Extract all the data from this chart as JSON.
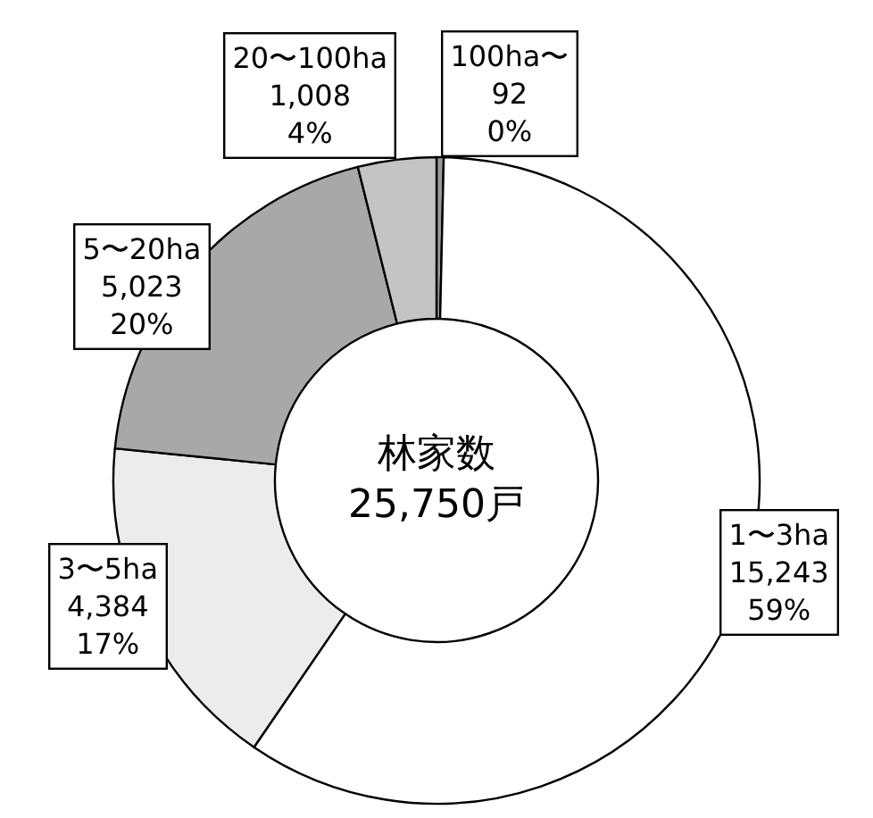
{
  "chart_data": {
    "type": "donut",
    "categories": [
      "100ha〜",
      "1〜3ha",
      "3〜5ha",
      "5〜20ha",
      "20〜100ha"
    ],
    "values": [
      92,
      15243,
      4384,
      5023,
      1008
    ],
    "value_labels": [
      "92\n0%",
      "15,243\n59%",
      "4,384\n17%",
      "5,023\n20%",
      "1,008\n4%"
    ],
    "colors": [
      "#9a9a9a",
      "#ffffff",
      "#ececec",
      "#a8a8a8",
      "#c4c4c4"
    ],
    "annotations": [
      "林家数\n25,750戸"
    ],
    "legend": false
  }
}
